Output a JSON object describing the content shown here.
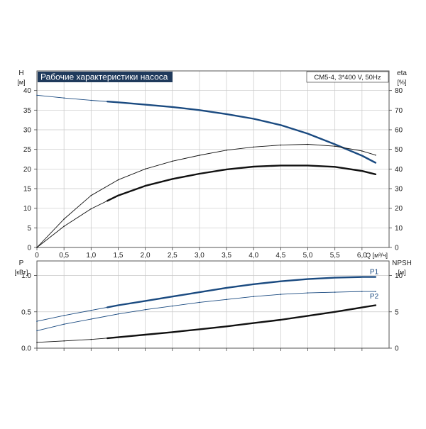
{
  "chart_data": [
    {
      "type": "line",
      "title": "Рабочие характеристики насоса",
      "subtitle": "CM5-4, 3*400 V, 50Hz",
      "xlabel": "Q [м³/ч]",
      "ylabel": "H",
      "ylabel_unit": "[м]",
      "y2label": "eta",
      "y2label_unit": "[%]",
      "xlim": [
        0,
        6.5
      ],
      "ylim": [
        0,
        45
      ],
      "y2lim": [
        0,
        90
      ],
      "x_ticks": [
        "0",
        "0,5",
        "1,0",
        "1,5",
        "2,0",
        "2,5",
        "3,0",
        "3,5",
        "4,0",
        "4,5",
        "5,0",
        "5,5",
        "6,0"
      ],
      "y_ticks": [
        "0",
        "5",
        "10",
        "15",
        "20",
        "25",
        "30",
        "35",
        "40"
      ],
      "y2_ticks": [
        "0",
        "10",
        "20",
        "30",
        "40",
        "50",
        "60",
        "70",
        "80"
      ],
      "grid": true,
      "series": [
        {
          "axis": "left",
          "color": "#1a4a80",
          "x": [
            0,
            0.5,
            1.0,
            1.5,
            2.0,
            2.5,
            3.0,
            3.5,
            4.0,
            4.5,
            5.0,
            5.5,
            6.0,
            6.25
          ],
          "values": [
            38.8,
            38.1,
            37.5,
            37.0,
            36.4,
            35.8,
            35.0,
            34.0,
            32.8,
            31.2,
            29.0,
            26.3,
            23.4,
            21.6
          ],
          "emphasis_from": 1.3
        },
        {
          "axis": "right",
          "color": "#111111",
          "x": [
            0,
            0.5,
            1.0,
            1.5,
            2.0,
            2.5,
            3.0,
            3.5,
            4.0,
            4.5,
            5.0,
            5.5,
            6.0,
            6.25
          ],
          "values": [
            0,
            14.5,
            26.5,
            34.5,
            40,
            44,
            47,
            49.6,
            51.2,
            52.2,
            52.6,
            51.6,
            49.2,
            47.1
          ],
          "emphasis_from": 99
        },
        {
          "axis": "right",
          "color": "#111111",
          "x": [
            0,
            0.5,
            1.0,
            1.5,
            2.0,
            2.5,
            3.0,
            3.5,
            4.0,
            4.5,
            5.0,
            5.5,
            6.0,
            6.25
          ],
          "values": [
            0,
            10.8,
            19.7,
            26.5,
            31.4,
            34.9,
            37.6,
            39.8,
            41.2,
            41.8,
            41.8,
            41.1,
            39.0,
            37.3
          ],
          "emphasis_from": 1.3
        }
      ]
    },
    {
      "type": "line",
      "ylabel": "P",
      "ylabel_unit": "[кВт]",
      "y2label": "NPSH",
      "y2label_unit": "[м]",
      "xlim": [
        0,
        6.5
      ],
      "ylim": [
        0,
        1.2
      ],
      "y2lim": [
        0,
        12
      ],
      "y_ticks": [
        "0.0",
        "0.5",
        "1.0"
      ],
      "y2_ticks": [
        "0",
        "5",
        "10"
      ],
      "grid": true,
      "series": [
        {
          "name": "P1",
          "axis": "left",
          "color": "#1a4a80",
          "x": [
            0,
            0.5,
            1.0,
            1.5,
            2.0,
            2.5,
            3.0,
            3.5,
            4.0,
            4.5,
            5.0,
            5.5,
            6.0,
            6.25
          ],
          "values": [
            0.37,
            0.45,
            0.52,
            0.59,
            0.65,
            0.71,
            0.77,
            0.83,
            0.88,
            0.92,
            0.95,
            0.97,
            0.98,
            0.98
          ],
          "emphasis_from": 1.3
        },
        {
          "name": "P2",
          "axis": "left",
          "color": "#1a4a80",
          "x": [
            0,
            0.5,
            1.0,
            1.5,
            2.0,
            2.5,
            3.0,
            3.5,
            4.0,
            4.5,
            5.0,
            5.5,
            6.0,
            6.25
          ],
          "values": [
            0.24,
            0.33,
            0.4,
            0.47,
            0.53,
            0.58,
            0.63,
            0.67,
            0.71,
            0.74,
            0.76,
            0.77,
            0.78,
            0.78
          ],
          "emphasis_from": 99
        },
        {
          "axis": "right",
          "color": "#111111",
          "x": [
            0,
            0.5,
            1.0,
            1.5,
            2.0,
            2.5,
            3.0,
            3.5,
            4.0,
            4.5,
            5.0,
            5.5,
            6.0,
            6.25
          ],
          "values": [
            0.8,
            1.0,
            1.2,
            1.5,
            1.85,
            2.2,
            2.6,
            3.0,
            3.45,
            3.9,
            4.45,
            5.0,
            5.6,
            5.9
          ],
          "emphasis_from": 1.3
        }
      ]
    }
  ],
  "colors": {
    "title_bg": "#1f3a5c",
    "curve_blue": "#1a4a80",
    "curve_black": "#111111",
    "grid": "#c8c8c8"
  }
}
